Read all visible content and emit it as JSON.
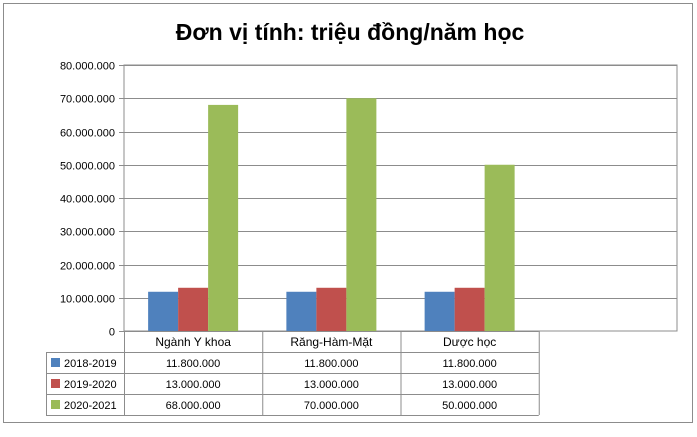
{
  "chart_data": {
    "type": "bar",
    "title": "Đơn vị tính: triệu đồng/năm học",
    "categories": [
      "Ngành Y khoa",
      "Răng-Hàm-Mặt",
      "Dược học"
    ],
    "series": [
      {
        "name": "2018-2019",
        "color": "#4f81bd",
        "values": [
          11800000,
          11800000,
          11800000
        ],
        "labels": [
          "11.800.000",
          "11.800.000",
          "11.800.000"
        ]
      },
      {
        "name": "2019-2020",
        "color": "#c0504d",
        "values": [
          13000000,
          13000000,
          13000000
        ],
        "labels": [
          "13.000.000",
          "13.000.000",
          "13.000.000"
        ]
      },
      {
        "name": "2020-2021",
        "color": "#9bbb59",
        "values": [
          68000000,
          70000000,
          50000000
        ],
        "labels": [
          "68.000.000",
          "70.000.000",
          "50.000.000"
        ]
      }
    ],
    "ylim": [
      0,
      80000000
    ],
    "yticks": [
      0,
      10000000,
      20000000,
      30000000,
      40000000,
      50000000,
      60000000,
      70000000,
      80000000
    ],
    "ytick_labels": [
      "0",
      "10.000.000",
      "20.000.000",
      "30.000.000",
      "40.000.000",
      "50.000.000",
      "60.000.000",
      "70.000.000",
      "80.000.000"
    ],
    "grid": true,
    "legend": "data-table"
  }
}
